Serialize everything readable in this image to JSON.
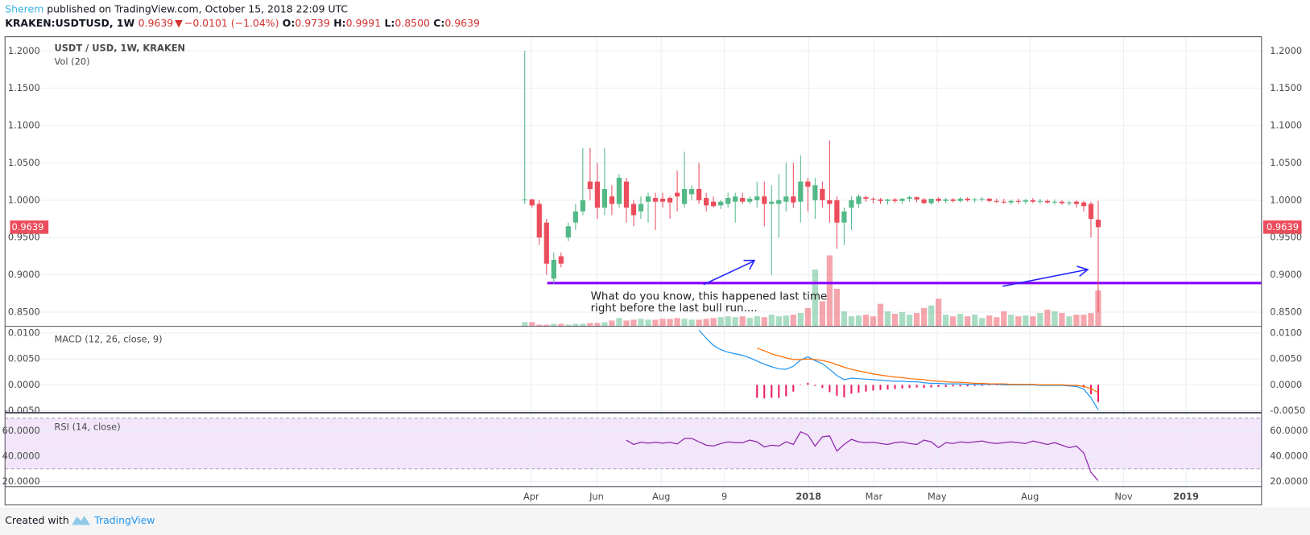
{
  "header": {
    "author": "Sherem",
    "published": "published on TradingView.com, October 15, 2018 22:09 UTC",
    "symbol": "KRAKEN:USDTUSD, 1W",
    "last": "0.9639",
    "arrow": "▼",
    "change": "−0.0101 (−1.04%)",
    "o_label": "O:",
    "o": "0.9739",
    "h_label": "H:",
    "h": "0.9991",
    "l_label": "L:",
    "l": "0.8500",
    "c_label": "C:",
    "c": "0.9639"
  },
  "chart_data": {
    "type": "candlestick",
    "title": "USDT / USD, 1W, KRAKEN",
    "up_color": "#53b987",
    "down_color": "#eb4d5c",
    "grid": true,
    "ylim": [
      0.831,
      1.219
    ],
    "yticks": [
      {
        "value": 1.2,
        "label": "1.2000"
      },
      {
        "value": 1.15,
        "label": "1.1500"
      },
      {
        "value": 1.1,
        "label": "1.1000"
      },
      {
        "value": 1.05,
        "label": "1.0500"
      },
      {
        "value": 1.0,
        "label": "1.0000"
      },
      {
        "value": 0.95,
        "label": "0.9500"
      },
      {
        "value": 0.9,
        "label": "0.9000"
      },
      {
        "value": 0.85,
        "label": "0.8500"
      }
    ],
    "xlim": [
      -71.6,
      101.5
    ],
    "xticks": [
      {
        "value": 0.9,
        "label": "Apr"
      },
      {
        "value": 9.9,
        "label": "Jun"
      },
      {
        "value": 18.8,
        "label": "Aug"
      },
      {
        "value": 27.5,
        "label": "9"
      },
      {
        "value": 39.1,
        "label": "2018"
      },
      {
        "value": 48.1,
        "label": "Mar"
      },
      {
        "value": 56.8,
        "label": "May"
      },
      {
        "value": 69.6,
        "label": "Aug"
      },
      {
        "value": 82.5,
        "label": "Nov"
      },
      {
        "value": 91.1,
        "label": "2019"
      }
    ],
    "candles": [
      {
        "o": 1.0,
        "h": 1.2,
        "l": 0.995,
        "c": 1.001
      },
      {
        "o": 1.001,
        "h": 1.002,
        "l": 0.99,
        "c": 0.993
      },
      {
        "o": 0.995,
        "h": 1.0,
        "l": 0.94,
        "c": 0.95
      },
      {
        "o": 0.97,
        "h": 0.975,
        "l": 0.9,
        "c": 0.915
      },
      {
        "o": 0.895,
        "h": 0.93,
        "l": 0.888,
        "c": 0.92
      },
      {
        "o": 0.925,
        "h": 0.93,
        "l": 0.91,
        "c": 0.915
      },
      {
        "o": 0.95,
        "h": 0.97,
        "l": 0.945,
        "c": 0.965
      },
      {
        "o": 0.97,
        "h": 0.995,
        "l": 0.96,
        "c": 0.985
      },
      {
        "o": 0.985,
        "h": 1.07,
        "l": 0.98,
        "c": 1.0
      },
      {
        "o": 1.025,
        "h": 1.07,
        "l": 1.0,
        "c": 1.015
      },
      {
        "o": 1.025,
        "h": 1.05,
        "l": 0.975,
        "c": 0.99
      },
      {
        "o": 0.99,
        "h": 1.07,
        "l": 0.98,
        "c": 1.015
      },
      {
        "o": 1.005,
        "h": 1.02,
        "l": 0.98,
        "c": 0.995
      },
      {
        "o": 0.995,
        "h": 1.035,
        "l": 0.99,
        "c": 1.03
      },
      {
        "o": 1.025,
        "h": 1.03,
        "l": 0.97,
        "c": 0.99
      },
      {
        "o": 0.995,
        "h": 1.0,
        "l": 0.965,
        "c": 0.98
      },
      {
        "o": 0.985,
        "h": 1.005,
        "l": 0.975,
        "c": 0.995
      },
      {
        "o": 0.998,
        "h": 1.01,
        "l": 0.97,
        "c": 1.005
      },
      {
        "o": 1.003,
        "h": 1.01,
        "l": 0.96,
        "c": 0.998
      },
      {
        "o": 1.002,
        "h": 1.01,
        "l": 0.99,
        "c": 0.998
      },
      {
        "o": 1.003,
        "h": 1.005,
        "l": 0.975,
        "c": 0.997
      },
      {
        "o": 1.01,
        "h": 1.04,
        "l": 0.985,
        "c": 1.005
      },
      {
        "o": 0.995,
        "h": 1.065,
        "l": 0.99,
        "c": 1.015
      },
      {
        "o": 1.008,
        "h": 1.02,
        "l": 1.0,
        "c": 1.015
      },
      {
        "o": 1.015,
        "h": 1.05,
        "l": 0.995,
        "c": 1.0
      },
      {
        "o": 1.003,
        "h": 1.01,
        "l": 0.985,
        "c": 0.993
      },
      {
        "o": 0.998,
        "h": 1.005,
        "l": 0.99,
        "c": 0.992
      },
      {
        "o": 0.993,
        "h": 1.0,
        "l": 0.988,
        "c": 0.998
      },
      {
        "o": 0.995,
        "h": 1.01,
        "l": 0.99,
        "c": 1.003
      },
      {
        "o": 0.998,
        "h": 1.01,
        "l": 0.97,
        "c": 1.005
      },
      {
        "o": 1.003,
        "h": 1.01,
        "l": 0.995,
        "c": 0.998
      },
      {
        "o": 0.998,
        "h": 1.005,
        "l": 0.995,
        "c": 1.002
      },
      {
        "o": 1.0,
        "h": 1.025,
        "l": 0.99,
        "c": 1.005
      },
      {
        "o": 1.005,
        "h": 1.025,
        "l": 0.965,
        "c": 0.995
      },
      {
        "o": 0.995,
        "h": 1.02,
        "l": 0.9,
        "c": 0.998
      },
      {
        "o": 0.995,
        "h": 1.035,
        "l": 0.95,
        "c": 1.0
      },
      {
        "o": 0.998,
        "h": 1.05,
        "l": 0.985,
        "c": 1.005
      },
      {
        "o": 1.005,
        "h": 1.05,
        "l": 0.99,
        "c": 0.997
      },
      {
        "o": 0.998,
        "h": 1.06,
        "l": 0.97,
        "c": 1.025
      },
      {
        "o": 1.025,
        "h": 1.03,
        "l": 0.985,
        "c": 1.018
      },
      {
        "o": 1.0,
        "h": 1.03,
        "l": 0.975,
        "c": 1.02
      },
      {
        "o": 1.015,
        "h": 1.025,
        "l": 0.99,
        "c": 1.0
      },
      {
        "o": 1.0,
        "h": 1.08,
        "l": 0.97,
        "c": 0.995
      },
      {
        "o": 1.0,
        "h": 1.005,
        "l": 0.935,
        "c": 0.97
      },
      {
        "o": 0.97,
        "h": 0.99,
        "l": 0.94,
        "c": 0.985
      },
      {
        "o": 0.99,
        "h": 1.005,
        "l": 0.96,
        "c": 1.0
      },
      {
        "o": 0.995,
        "h": 1.008,
        "l": 0.99,
        "c": 1.005
      },
      {
        "o": 1.004,
        "h": 1.006,
        "l": 0.998,
        "c": 1.002
      },
      {
        "o": 1.002,
        "h": 1.004,
        "l": 0.996,
        "c": 1.001
      },
      {
        "o": 1.001,
        "h": 1.003,
        "l": 0.995,
        "c": 0.999
      },
      {
        "o": 0.999,
        "h": 1.002,
        "l": 0.994,
        "c": 1.001
      },
      {
        "o": 1.001,
        "h": 1.003,
        "l": 0.996,
        "c": 0.999
      },
      {
        "o": 0.999,
        "h": 1.003,
        "l": 0.995,
        "c": 1.002
      },
      {
        "o": 1.002,
        "h": 1.006,
        "l": 0.998,
        "c": 1.004
      },
      {
        "o": 1.004,
        "h": 1.005,
        "l": 0.997,
        "c": 1.001
      },
      {
        "o": 1.001,
        "h": 1.003,
        "l": 0.995,
        "c": 0.996
      },
      {
        "o": 0.996,
        "h": 1.002,
        "l": 0.994,
        "c": 1.002
      },
      {
        "o": 1.002,
        "h": 1.004,
        "l": 0.997,
        "c": 0.999
      },
      {
        "o": 0.999,
        "h": 1.003,
        "l": 0.996,
        "c": 1.001
      },
      {
        "o": 1.001,
        "h": 1.003,
        "l": 0.997,
        "c": 0.999
      },
      {
        "o": 0.999,
        "h": 1.004,
        "l": 0.997,
        "c": 1.002
      },
      {
        "o": 1.002,
        "h": 1.004,
        "l": 0.998,
        "c": 1.0
      },
      {
        "o": 1.0,
        "h": 1.003,
        "l": 0.997,
        "c": 1.001
      },
      {
        "o": 1.001,
        "h": 1.004,
        "l": 0.998,
        "c": 1.002
      },
      {
        "o": 1.002,
        "h": 1.003,
        "l": 0.997,
        "c": 0.999
      },
      {
        "o": 0.999,
        "h": 1.002,
        "l": 0.996,
        "c": 0.998
      },
      {
        "o": 0.998,
        "h": 1.002,
        "l": 0.995,
        "c": 0.997
      },
      {
        "o": 0.997,
        "h": 1.001,
        "l": 0.994,
        "c": 0.999
      },
      {
        "o": 0.999,
        "h": 1.002,
        "l": 0.995,
        "c": 0.998
      },
      {
        "o": 0.998,
        "h": 1.002,
        "l": 0.995,
        "c": 1.0
      },
      {
        "o": 1.0,
        "h": 1.003,
        "l": 0.996,
        "c": 0.998
      },
      {
        "o": 0.998,
        "h": 1.002,
        "l": 0.995,
        "c": 0.999
      },
      {
        "o": 0.999,
        "h": 1.001,
        "l": 0.995,
        "c": 0.997
      },
      {
        "o": 0.997,
        "h": 1.001,
        "l": 0.994,
        "c": 0.998
      },
      {
        "o": 0.998,
        "h": 1.0,
        "l": 0.994,
        "c": 0.996
      },
      {
        "o": 0.996,
        "h": 0.999,
        "l": 0.993,
        "c": 0.997
      },
      {
        "o": 0.998,
        "h": 1.0,
        "l": 0.99,
        "c": 0.995
      },
      {
        "o": 0.997,
        "h": 0.999,
        "l": 0.985,
        "c": 0.992
      },
      {
        "o": 0.995,
        "h": 0.998,
        "l": 0.95,
        "c": 0.975
      },
      {
        "o": 0.9739,
        "h": 0.9991,
        "l": 0.85,
        "c": 0.9639
      }
    ],
    "volume": {
      "label": "Vol (20)",
      "values": [
        5,
        5,
        2,
        2,
        3,
        3,
        2,
        3,
        3,
        4,
        4,
        5,
        7,
        10,
        7,
        8,
        9,
        8,
        8,
        9,
        9,
        10,
        9,
        8,
        8,
        9,
        10,
        11,
        12,
        11,
        12,
        10,
        12,
        11,
        14,
        12,
        13,
        14,
        16,
        22,
        68,
        30,
        85,
        45,
        18,
        12,
        13,
        14,
        12,
        27,
        18,
        15,
        17,
        14,
        16,
        22,
        25,
        33,
        14,
        12,
        15,
        12,
        14,
        10,
        13,
        11,
        18,
        14,
        12,
        13,
        12,
        16,
        20,
        18,
        16,
        12,
        14,
        14,
        16,
        43
      ]
    },
    "hline": {
      "value": 0.889,
      "color": "#8800ff"
    },
    "annotation": [
      "What do you know, this happened last time",
      "right before the last bull run...."
    ],
    "macd": {
      "label": "MACD (12, 26, close, 9)",
      "ylim": [
        -0.0053,
        0.0113
      ],
      "yticks": [
        {
          "value": 0.01,
          "label": "0.0100"
        },
        {
          "value": 0.005,
          "label": "0.0050"
        },
        {
          "value": 0,
          "label": "0.0000"
        },
        {
          "value": -0.005,
          "label": "-0.0050"
        }
      ],
      "series": [
        {
          "name": "MACD",
          "color": "#2196f3",
          "values": [
            null,
            null,
            null,
            null,
            null,
            null,
            null,
            null,
            null,
            null,
            null,
            null,
            null,
            null,
            null,
            null,
            null,
            null,
            null,
            null,
            null,
            null,
            null,
            null,
            0.0106,
            0.009,
            0.0076,
            0.0068,
            0.0063,
            0.006,
            0.0057,
            0.0052,
            0.0046,
            0.004,
            0.0035,
            0.0031,
            0.003,
            0.0036,
            0.0048,
            0.0054,
            0.0047,
            0.0041,
            0.003,
            0.0018,
            0.001,
            0.0013,
            0.0012,
            0.0011,
            0.001,
            0.0009,
            0.0008,
            0.0007,
            0.0007,
            0.0006,
            0.0006,
            0.0004,
            0.0003,
            0.0003,
            0.0002,
            0.0002,
            0.0002,
            0.0001,
            0.0001,
            0.0001,
            0.0001,
            0.0001,
            0.0,
            0.0,
            0.0,
            0.0,
            0.0,
            -0.0001,
            -0.0001,
            -0.0001,
            -0.0001,
            -0.0002,
            -0.0003,
            -0.0008,
            -0.0025,
            -0.0048
          ]
        },
        {
          "name": "Signal",
          "color": "#ff6d00",
          "values": [
            null,
            null,
            null,
            null,
            null,
            null,
            null,
            null,
            null,
            null,
            null,
            null,
            null,
            null,
            null,
            null,
            null,
            null,
            null,
            null,
            null,
            null,
            null,
            null,
            null,
            null,
            null,
            null,
            null,
            null,
            null,
            null,
            0.0071,
            0.0066,
            0.006,
            0.0056,
            0.0052,
            0.0049,
            0.0049,
            0.005,
            0.0049,
            0.0047,
            0.0044,
            0.0039,
            0.0034,
            0.003,
            0.0027,
            0.0024,
            0.0021,
            0.0019,
            0.0017,
            0.0015,
            0.0014,
            0.0012,
            0.0011,
            0.001,
            0.0008,
            0.0007,
            0.0006,
            0.0005,
            0.0005,
            0.0004,
            0.0003,
            0.0003,
            0.0002,
            0.0002,
            0.0002,
            0.0001,
            0.0001,
            0.0001,
            0.0001,
            0.0,
            0.0,
            0.0,
            0.0,
            -0.0001,
            -0.0001,
            -0.0003,
            -0.0007,
            -0.0015
          ]
        }
      ],
      "histogram": {
        "color": "#e91e63",
        "values": [
          null,
          null,
          null,
          null,
          null,
          null,
          null,
          null,
          null,
          null,
          null,
          null,
          null,
          null,
          null,
          null,
          null,
          null,
          null,
          null,
          null,
          null,
          null,
          null,
          null,
          null,
          null,
          null,
          null,
          null,
          null,
          null,
          -0.0025,
          -0.0026,
          -0.0025,
          -0.0025,
          -0.0022,
          -0.0013,
          -0.0001,
          0.0004,
          -0.0002,
          -0.0006,
          -0.0014,
          -0.0021,
          -0.0024,
          -0.0017,
          -0.0015,
          -0.0013,
          -0.0011,
          -0.001,
          -0.0009,
          -0.0008,
          -0.0007,
          -0.0006,
          -0.0005,
          -0.0006,
          -0.0005,
          -0.0004,
          -0.0004,
          -0.0003,
          -0.0003,
          -0.0003,
          -0.0002,
          -0.0002,
          -0.0001,
          -0.0001,
          -0.0001,
          -0.0001,
          -0.0001,
          -0.0001,
          -0.0001,
          -0.0001,
          -0.0001,
          -0.0001,
          -0.0001,
          -0.0001,
          -0.0002,
          -0.0005,
          -0.0018,
          -0.0033
        ]
      }
    },
    "rsi": {
      "label": "RSI (14, close)",
      "ylim": [
        16,
        74
      ],
      "bands": [
        30,
        70
      ],
      "color": "#8e24aa",
      "yticks": [
        {
          "value": 60,
          "label": "60.0000"
        },
        {
          "value": 40,
          "label": "40.0000"
        },
        {
          "value": 20,
          "label": "20.0000"
        }
      ],
      "values": [
        null,
        null,
        null,
        null,
        null,
        null,
        null,
        null,
        null,
        null,
        null,
        null,
        null,
        null,
        52.7,
        49.3,
        51.0,
        50.3,
        51.0,
        50.3,
        51.0,
        49.7,
        54.0,
        54.0,
        51.3,
        48.7,
        48.0,
        50.0,
        51.3,
        50.7,
        50.7,
        52.7,
        51.3,
        47.3,
        48.7,
        48.0,
        51.3,
        49.3,
        59.3,
        56.7,
        48.0,
        55.3,
        56.0,
        44.0,
        49.3,
        53.3,
        51.3,
        50.7,
        51.0,
        50.0,
        49.3,
        50.7,
        51.3,
        50.0,
        49.3,
        52.7,
        51.3,
        46.7,
        50.7,
        50.0,
        51.3,
        50.7,
        51.3,
        52.0,
        50.7,
        50.0,
        50.7,
        51.3,
        50.7,
        50.0,
        52.0,
        50.7,
        49.3,
        50.7,
        48.7,
        46.7,
        48.0,
        42.7,
        27.3,
        20.7
      ]
    }
  },
  "footer": {
    "created": "Created with",
    "brand": "TradingView"
  }
}
